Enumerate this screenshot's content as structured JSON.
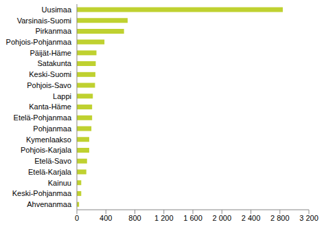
{
  "chart_data": {
    "type": "bar",
    "orientation": "horizontal",
    "categories": [
      "Uusimaa",
      "Varsinais-Suomi",
      "Pirkanmaa",
      "Pohjois-Pohjanmaa",
      "Päijät-Häme",
      "Satakunta",
      "Keski-Suomi",
      "Pohjois-Savo",
      "Lappi",
      "Kanta-Häme",
      "Etelä-Pohjanmaa",
      "Pohjanmaa",
      "Kymenlaakso",
      "Pohjois-Karjala",
      "Etelä-Savo",
      "Etelä-Karjala",
      "Kainuu",
      "Keski-Pohjanmaa",
      "Ahvenanmaa"
    ],
    "values": [
      2840,
      700,
      650,
      380,
      270,
      260,
      255,
      250,
      220,
      210,
      210,
      200,
      170,
      170,
      140,
      130,
      60,
      60,
      30
    ],
    "color": "#bfd130",
    "xlim": [
      0,
      3200
    ],
    "xticks": [
      0,
      400,
      800,
      {
        "value": 1200,
        "label": "1 200"
      },
      {
        "value": 1600,
        "label": "1 600"
      },
      {
        "value": 2000,
        "label": "2 000"
      },
      {
        "value": 2400,
        "label": "2 400"
      },
      {
        "value": 2800,
        "label": "2 800"
      },
      {
        "value": 3200,
        "label": "3 200"
      }
    ],
    "grid": false
  }
}
